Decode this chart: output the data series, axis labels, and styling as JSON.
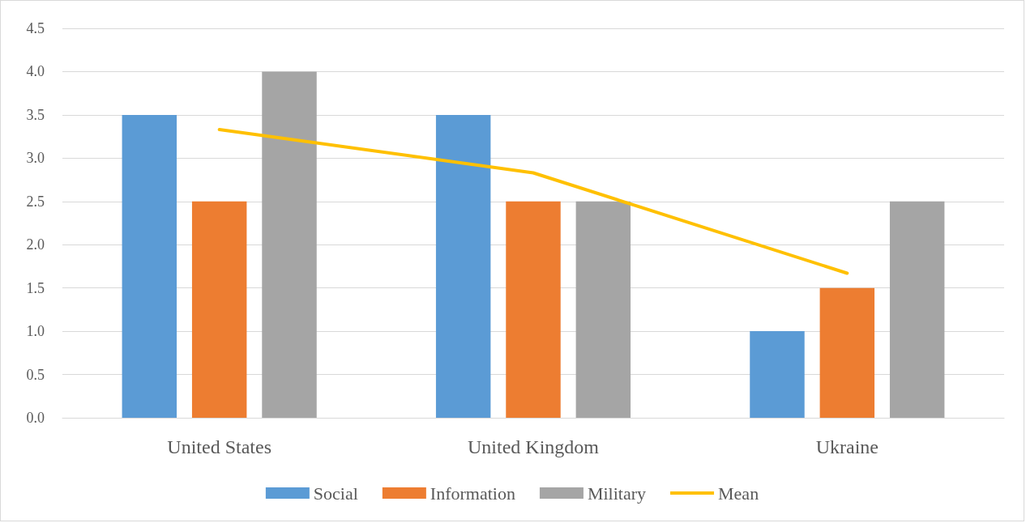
{
  "chart_data": {
    "type": "bar",
    "categories": [
      "United States",
      "United Kingdom",
      "Ukraine"
    ],
    "series": [
      {
        "name": "Social",
        "color": "#5b9bd5",
        "values": [
          3.5,
          3.5,
          1.0
        ]
      },
      {
        "name": "Information",
        "color": "#ed7d31",
        "values": [
          2.5,
          2.5,
          1.5
        ]
      },
      {
        "name": "Military",
        "color": "#a5a5a5",
        "values": [
          4.0,
          2.5,
          2.5
        ]
      },
      {
        "name": "Mean",
        "type": "line",
        "color": "#ffc000",
        "values": [
          3.33,
          2.83,
          1.67
        ]
      }
    ],
    "ylim": [
      0,
      4.5
    ],
    "yticks": [
      {
        "value": 0,
        "label": "0.0"
      },
      0.5,
      {
        "value": 1,
        "label": "1.0"
      },
      1.5,
      {
        "value": 2,
        "label": "2.0"
      },
      2.5,
      {
        "value": 3,
        "label": "3.0"
      },
      3.5,
      {
        "value": 4,
        "label": "4.0"
      },
      4.5
    ],
    "grid": "y",
    "legend": "bottom",
    "marker": "none"
  }
}
